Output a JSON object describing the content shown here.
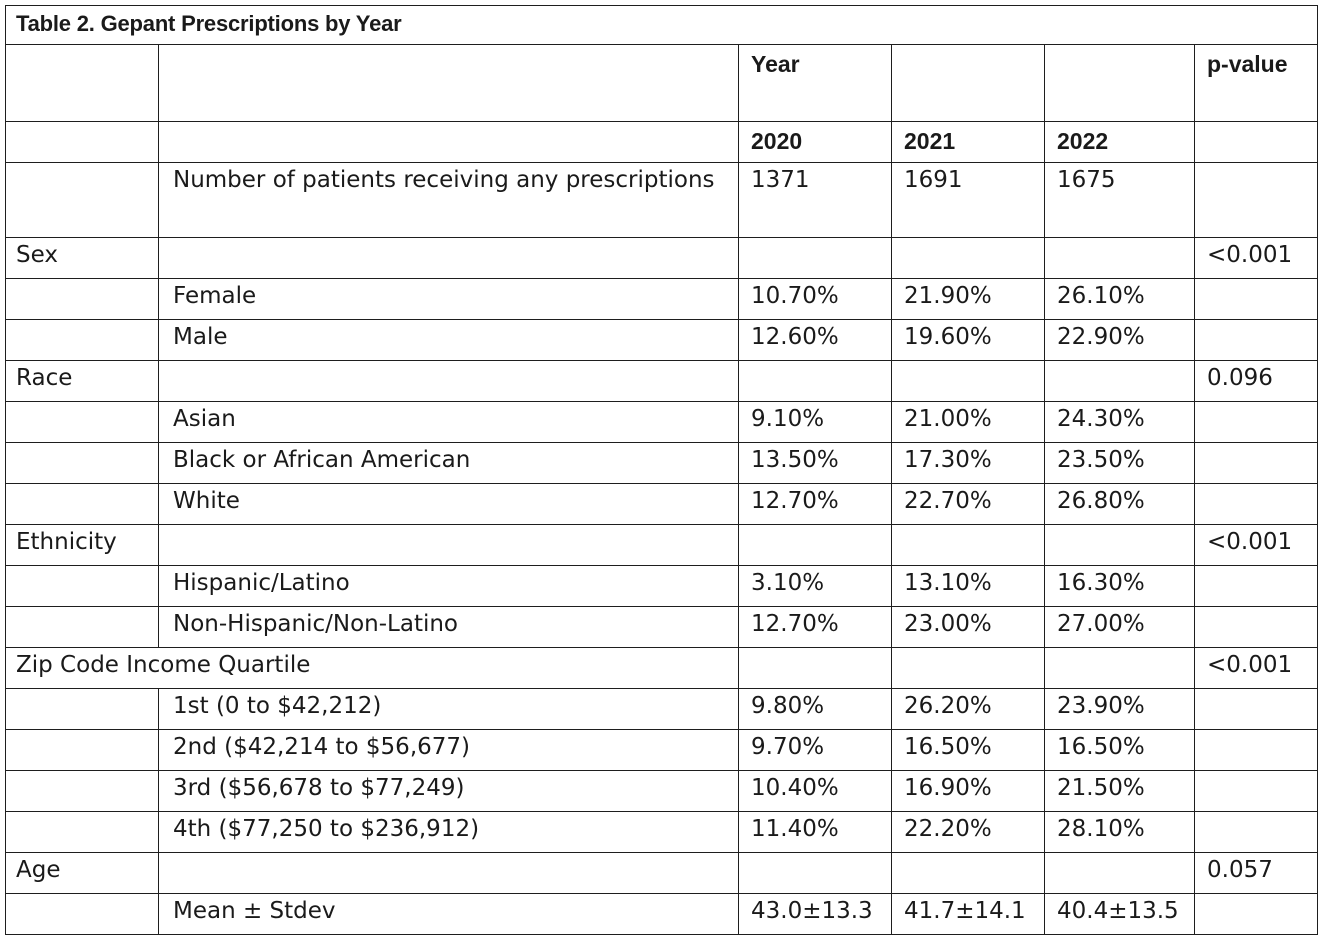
{
  "table": {
    "title": "Table 2. Gepant Prescriptions by Year",
    "header": {
      "year_label": "Year",
      "pvalue_label": "p-value",
      "years": [
        "2020",
        "2021",
        "2022"
      ]
    },
    "patients": {
      "label": "Number of patients receiving any prescriptions",
      "values": [
        "1371",
        "1691",
        "1675"
      ]
    },
    "sex": {
      "label": "Sex",
      "p": "<0.001",
      "rows": [
        {
          "label": "Female",
          "v2020": "10.70%",
          "v2021": "21.90%",
          "v2022": "26.10%"
        },
        {
          "label": "Male",
          "v2020": "12.60%",
          "v2021": "19.60%",
          "v2022": "22.90%"
        }
      ]
    },
    "race": {
      "label": "Race",
      "p": "0.096",
      "rows": [
        {
          "label": "Asian",
          "v2020": "9.10%",
          "v2021": "21.00%",
          "v2022": "24.30%"
        },
        {
          "label": "Black or African American",
          "v2020": "13.50%",
          "v2021": "17.30%",
          "v2022": "23.50%"
        },
        {
          "label": "White",
          "v2020": "12.70%",
          "v2021": "22.70%",
          "v2022": "26.80%"
        }
      ]
    },
    "ethnicity": {
      "label": "Ethnicity",
      "p": "<0.001",
      "rows": [
        {
          "label": "Hispanic/Latino",
          "v2020": "3.10%",
          "v2021": "13.10%",
          "v2022": "16.30%"
        },
        {
          "label": "Non-Hispanic/Non-Latino",
          "v2020": "12.70%",
          "v2021": "23.00%",
          "v2022": "27.00%"
        }
      ]
    },
    "income": {
      "label": "Zip Code Income Quartile",
      "p": "<0.001",
      "rows": [
        {
          "label": "1st (0 to $42,212)",
          "v2020": "9.80%",
          "v2021": "26.20%",
          "v2022": "23.90%"
        },
        {
          "label": "2nd ($42,214 to $56,677)",
          "v2020": "9.70%",
          "v2021": "16.50%",
          "v2022": "16.50%"
        },
        {
          "label": "3rd ($56,678 to $77,249)",
          "v2020": "10.40%",
          "v2021": "16.90%",
          "v2022": "21.50%"
        },
        {
          "label": "4th ($77,250 to $236,912)",
          "v2020": "11.40%",
          "v2021": "22.20%",
          "v2022": "28.10%"
        }
      ]
    },
    "age": {
      "label": "Age",
      "p": "0.057",
      "rows": [
        {
          "label": "Mean ± Stdev",
          "v2020": "43.0±13.3",
          "v2021": "41.7±14.1",
          "v2022": "40.4±13.5"
        }
      ]
    }
  }
}
